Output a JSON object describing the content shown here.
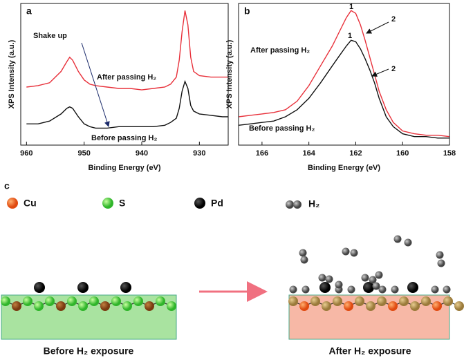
{
  "chart_data": [
    {
      "type": "line",
      "label": "a",
      "xlabel": "Binding Energy (eV)",
      "ylabel": "XPS Intensity (a.u.)",
      "xlim": [
        961,
        925
      ],
      "xticks": [
        960,
        950,
        940,
        930
      ],
      "ylim": [
        0,
        100
      ],
      "annotations": [
        "Shake up",
        "After passing H₂",
        "Before passing H₂"
      ],
      "series": [
        {
          "name": "After passing H₂",
          "color": "#e8303a",
          "x": [
            960,
            958,
            956,
            954,
            953,
            952.5,
            952,
            951,
            950,
            949,
            948,
            946,
            944,
            942,
            940,
            938,
            936,
            935,
            934,
            933.5,
            933,
            932.5,
            932,
            931.5,
            931,
            930,
            928,
            926,
            925
          ],
          "values": [
            41,
            42,
            44,
            52,
            59,
            62,
            60,
            52,
            46,
            43,
            42,
            41,
            40,
            40,
            39,
            40,
            41,
            43,
            48,
            60,
            80,
            95,
            85,
            62,
            52,
            49,
            48,
            48,
            48
          ]
        },
        {
          "name": "Before passing H₂",
          "color": "#111111",
          "x": [
            960,
            958,
            956,
            954,
            953,
            952.5,
            952,
            951,
            950,
            949,
            948,
            946,
            944,
            942,
            940,
            938,
            936,
            935,
            934,
            933.5,
            933,
            932.5,
            932,
            931.5,
            931,
            930,
            928,
            926,
            925
          ],
          "values": [
            15,
            15,
            17,
            22,
            26,
            27,
            26,
            20,
            15,
            13,
            12,
            12,
            13,
            13,
            13,
            13,
            14,
            16,
            19,
            26,
            38,
            45,
            40,
            28,
            24,
            22,
            21,
            20,
            20
          ]
        }
      ]
    },
    {
      "type": "line",
      "label": "b",
      "xlabel": "Binding Energy (eV)",
      "ylabel": "XPS Intensity (a.u.)",
      "xlim": [
        167,
        158
      ],
      "xticks": [
        166,
        164,
        162,
        160,
        158
      ],
      "ylim": [
        0,
        100
      ],
      "annotations": [
        "After passing H₂",
        "Before passing H₂",
        "1",
        "2",
        "1",
        "2"
      ],
      "series": [
        {
          "name": "After passing H₂",
          "color": "#e8303a",
          "x": [
            167,
            166.5,
            166,
            165.5,
            165,
            164.5,
            164,
            163.5,
            163,
            162.7,
            162.4,
            162.2,
            162,
            161.8,
            161.6,
            161.4,
            161.2,
            161,
            160.7,
            160.4,
            160,
            159.5,
            159,
            158.5,
            158
          ],
          "values": [
            20,
            21,
            22,
            23,
            25,
            31,
            42,
            56,
            70,
            80,
            90,
            95,
            93,
            85,
            74,
            62,
            50,
            38,
            25,
            16,
            10,
            8,
            7,
            7,
            6
          ]
        },
        {
          "name": "Before passing H₂",
          "color": "#111111",
          "x": [
            167,
            166.5,
            166,
            165.5,
            165,
            164.5,
            164,
            163.5,
            163,
            162.7,
            162.4,
            162.2,
            162,
            161.8,
            161.6,
            161.4,
            161.2,
            161,
            160.7,
            160.4,
            160,
            159.5,
            159,
            158.5,
            158
          ],
          "values": [
            14,
            15,
            16,
            17,
            20,
            25,
            33,
            44,
            56,
            63,
            70,
            74,
            73,
            68,
            61,
            53,
            44,
            33,
            20,
            13,
            8,
            6,
            6,
            5,
            5
          ]
        }
      ]
    }
  ],
  "panel_c": {
    "label": "c",
    "legend": [
      "Cu",
      "S",
      "Pd",
      "H₂"
    ],
    "captions": [
      "Before H₂ exposure",
      "After H₂ exposure"
    ]
  }
}
